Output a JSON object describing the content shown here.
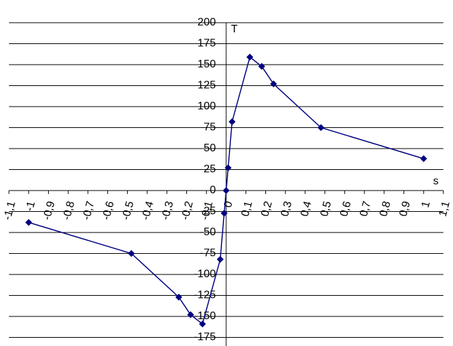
{
  "chart_data": {
    "type": "line",
    "x_label": "s",
    "y_label": "T",
    "x": [
      -1,
      -0.48,
      -0.24,
      -0.18,
      -0.12,
      -0.03,
      -0.01,
      0,
      0.01,
      0.03,
      0.12,
      0.18,
      0.24,
      0.48,
      1
    ],
    "values": [
      -38,
      -75,
      -127,
      -148,
      -159,
      -82,
      -27,
      0,
      27,
      82,
      159,
      148,
      127,
      75,
      38
    ],
    "color": "#000080",
    "xlim": [
      -1.1,
      1.1
    ],
    "xticks": [
      {
        "value": -1.1,
        "label": "-1,1"
      },
      {
        "value": -1,
        "label": "-1"
      },
      {
        "value": -0.9,
        "label": "-0,9"
      },
      {
        "value": -0.8,
        "label": "-0,8"
      },
      {
        "value": -0.7,
        "label": "-0,7"
      },
      {
        "value": -0.6,
        "label": "-0,6"
      },
      {
        "value": -0.5,
        "label": "-0,5"
      },
      {
        "value": -0.4,
        "label": "-0,4"
      },
      {
        "value": -0.3,
        "label": "-0,3"
      },
      {
        "value": -0.2,
        "label": "-0,2"
      },
      {
        "value": -0.1,
        "label": "-0,1"
      },
      0,
      {
        "value": 0.1,
        "label": "0,1"
      },
      {
        "value": 0.2,
        "label": "0,2"
      },
      {
        "value": 0.3,
        "label": "0,3"
      },
      {
        "value": 0.4,
        "label": "0,4"
      },
      {
        "value": 0.5,
        "label": "0,5"
      },
      {
        "value": 0.6,
        "label": "0,6"
      },
      {
        "value": 0.7,
        "label": "0,7"
      },
      {
        "value": 0.8,
        "label": "0,8"
      },
      {
        "value": 0.9,
        "label": "0,9"
      },
      1,
      {
        "value": 1.1,
        "label": "1,1"
      }
    ],
    "ylim": [
      -185,
      200
    ],
    "yticks": [
      -175,
      -150,
      -125,
      -100,
      -75,
      -50,
      -25,
      0,
      25,
      50,
      75,
      100,
      125,
      150,
      175,
      200
    ],
    "grid": true
  }
}
